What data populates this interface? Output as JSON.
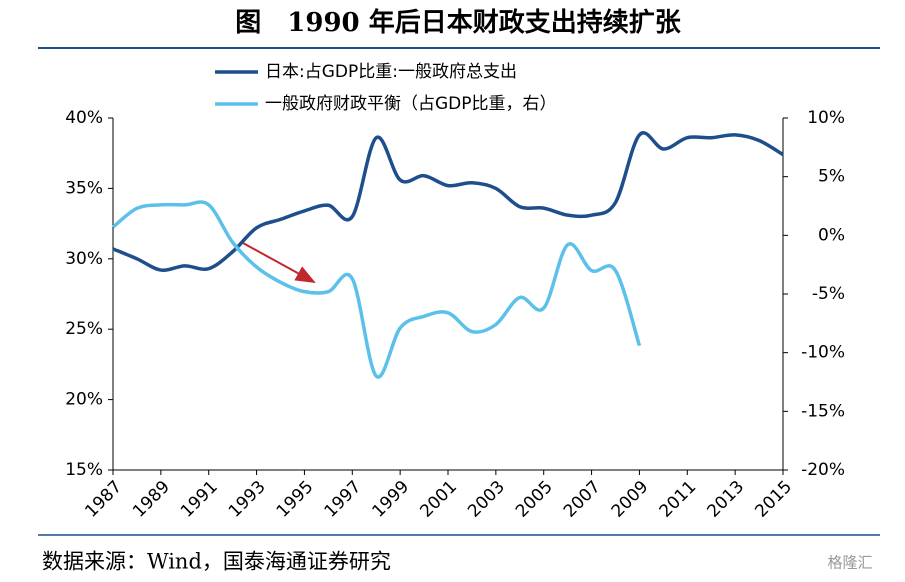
{
  "title": "图　1990 年后日本财政支出持续扩张",
  "source": "数据来源：Wind，国泰海通证券研究",
  "watermark": "格隆汇",
  "chart_data": {
    "type": "line",
    "x": [
      1987,
      1988,
      1989,
      1990,
      1991,
      1992,
      1993,
      1994,
      1995,
      1996,
      1997,
      1998,
      1999,
      2000,
      2001,
      2002,
      2003,
      2004,
      2005,
      2006,
      2007,
      2008,
      2009,
      2010,
      2011,
      2012,
      2013,
      2014,
      2015
    ],
    "xlim": [
      1987,
      2015
    ],
    "xticks": [
      1987,
      1989,
      1991,
      1993,
      1995,
      1997,
      1999,
      2001,
      2003,
      2005,
      2007,
      2009,
      2011,
      2013,
      2015
    ],
    "ylim": [
      15,
      40
    ],
    "yticks": [
      {
        "value": 15,
        "label": "15%"
      },
      {
        "value": 20,
        "label": "20%"
      },
      {
        "value": 25,
        "label": "25%"
      },
      {
        "value": 30,
        "label": "30%"
      },
      {
        "value": 35,
        "label": "35%"
      },
      {
        "value": 40,
        "label": "40%"
      }
    ],
    "y2lim": [
      -20,
      10
    ],
    "y2ticks": [
      {
        "value": -20,
        "label": "-20%"
      },
      {
        "value": -15,
        "label": "-15%"
      },
      {
        "value": -10,
        "label": "-10%"
      },
      {
        "value": -5,
        "label": "-5%"
      },
      {
        "value": 0,
        "label": "0%"
      },
      {
        "value": 5,
        "label": "5%"
      },
      {
        "value": 10,
        "label": "10%"
      }
    ],
    "legend": "top-left",
    "series": [
      {
        "name": "日本:占GDP比重:一般政府总支出",
        "color": "#1f4e8c",
        "values": [
          30.7,
          30.0,
          29.2,
          29.5,
          29.3,
          30.5,
          32.2,
          32.8,
          33.4,
          33.8,
          33.0,
          38.6,
          35.6,
          35.9,
          35.2,
          35.4,
          35.0,
          33.7,
          33.6,
          33.1,
          33.1,
          34.0,
          38.8,
          37.8,
          38.6,
          38.6,
          38.8,
          38.4,
          37.4
        ]
      },
      {
        "name": "一般政府财政平衡（占GDP比重，右）",
        "color": "#5bc0ea",
        "axis": "y2",
        "values": [
          0.7,
          2.3,
          2.6,
          2.6,
          2.6,
          -0.6,
          -2.7,
          -4.0,
          -4.8,
          -4.8,
          -3.7,
          -12.0,
          -7.9,
          -6.9,
          -6.6,
          -8.2,
          -7.6,
          -5.3,
          -6.2,
          -0.8,
          -3.0,
          -3.0,
          -9.4,
          null,
          null,
          null,
          null,
          null,
          null
        ]
      }
    ]
  }
}
